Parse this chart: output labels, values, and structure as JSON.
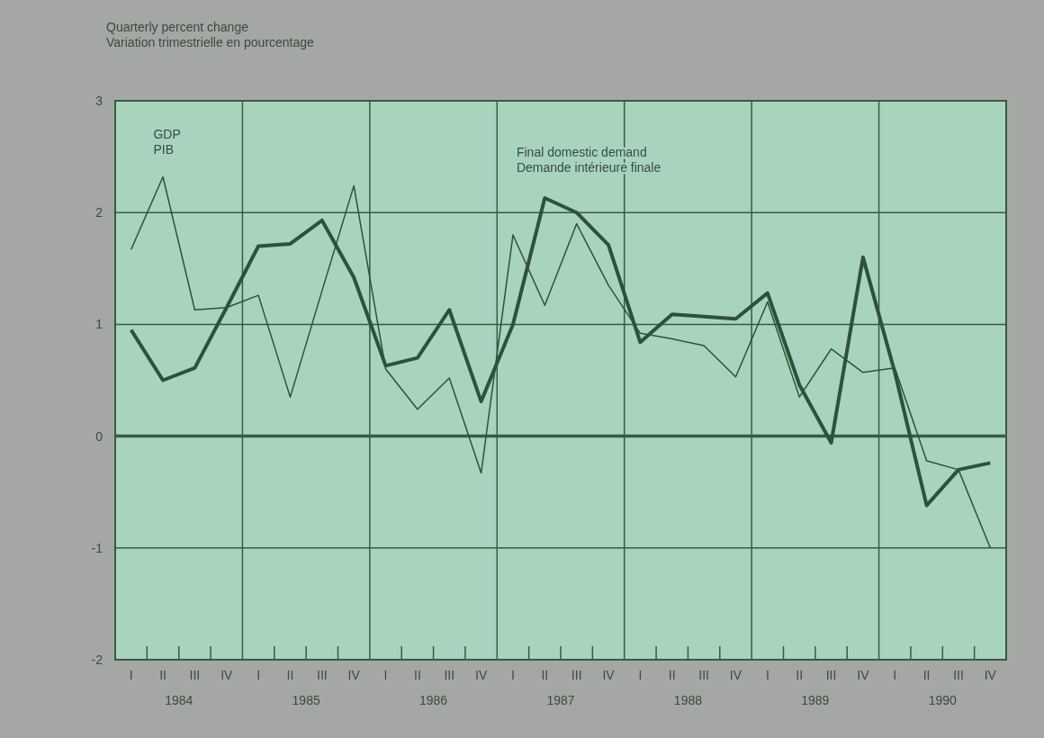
{
  "chart_data": {
    "type": "line",
    "ylabel": "Quarterly percent change\nVariation trimestrielle en pourcentage",
    "categories": [
      "I",
      "II",
      "III",
      "IV",
      "I",
      "II",
      "III",
      "IV",
      "I",
      "II",
      "III",
      "IV",
      "I",
      "II",
      "III",
      "IV",
      "I",
      "II",
      "III",
      "IV",
      "I",
      "II",
      "III",
      "IV",
      "I",
      "II",
      "III",
      "IV"
    ],
    "annotations": [
      "1984",
      "1985",
      "1986",
      "1987",
      "1988",
      "1989",
      "1990"
    ],
    "ylim": [
      -2,
      3
    ],
    "yticks": [
      -2,
      -1,
      0,
      1,
      2,
      3
    ],
    "grid": true,
    "marker": "none",
    "line_style": "solid",
    "series": [
      {
        "name": "GDP\nPIB",
        "color": "#2f5236",
        "values": [
          1.67,
          2.32,
          1.13,
          1.15,
          1.26,
          0.35,
          1.3,
          2.24,
          0.6,
          0.24,
          0.52,
          -0.33,
          1.8,
          1.17,
          1.9,
          1.35,
          0.92,
          0.87,
          0.81,
          0.53,
          1.2,
          0.35,
          0.78,
          0.57,
          0.61,
          -0.22,
          -0.3,
          -1.0
        ]
      },
      {
        "name": "Final domestic demand\nDemande intérieure finale",
        "color": "#2f5236",
        "values": [
          0.95,
          0.5,
          0.61,
          1.15,
          1.7,
          1.72,
          1.93,
          1.42,
          0.63,
          0.7,
          1.13,
          0.31,
          1.0,
          2.13,
          2.0,
          1.71,
          0.84,
          1.09,
          1.07,
          1.05,
          1.28,
          0.46,
          -0.06,
          1.6,
          0.57,
          -0.62,
          -0.3,
          -0.24
        ]
      }
    ]
  }
}
